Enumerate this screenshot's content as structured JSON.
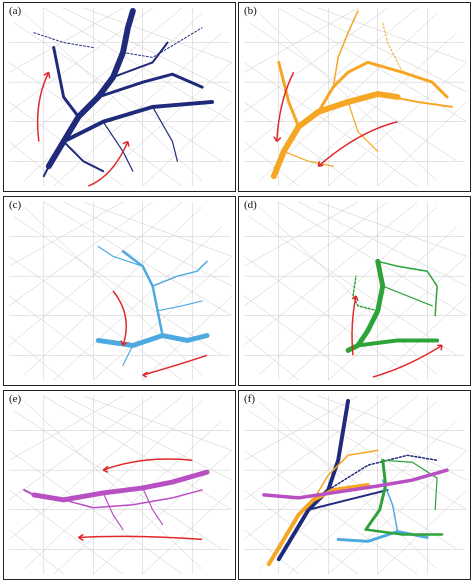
{
  "figure": {
    "panels": [
      {
        "id": "a",
        "label": "(a)",
        "route_color": "#1f2a7a",
        "arrow_color": "#e0282a",
        "base_color": "#bdbdbd"
      },
      {
        "id": "b",
        "label": "(b)",
        "route_color": "#f5a623",
        "arrow_color": "#e0282a",
        "base_color": "#bdbdbd"
      },
      {
        "id": "c",
        "label": "(c)",
        "route_color": "#4ea9e0",
        "arrow_color": "#e0282a",
        "base_color": "#bdbdbd"
      },
      {
        "id": "d",
        "label": "(d)",
        "route_color": "#2ea33a",
        "arrow_color": "#e0282a",
        "base_color": "#bdbdbd"
      },
      {
        "id": "e",
        "label": "(e)",
        "route_color": "#b84fc2",
        "arrow_color": "#e0282a",
        "base_color": "#bdbdbd"
      },
      {
        "id": "f",
        "label": "(f)",
        "route_color": "multi",
        "arrow_color": "#e0282a",
        "base_color": "#bdbdbd"
      }
    ]
  }
}
